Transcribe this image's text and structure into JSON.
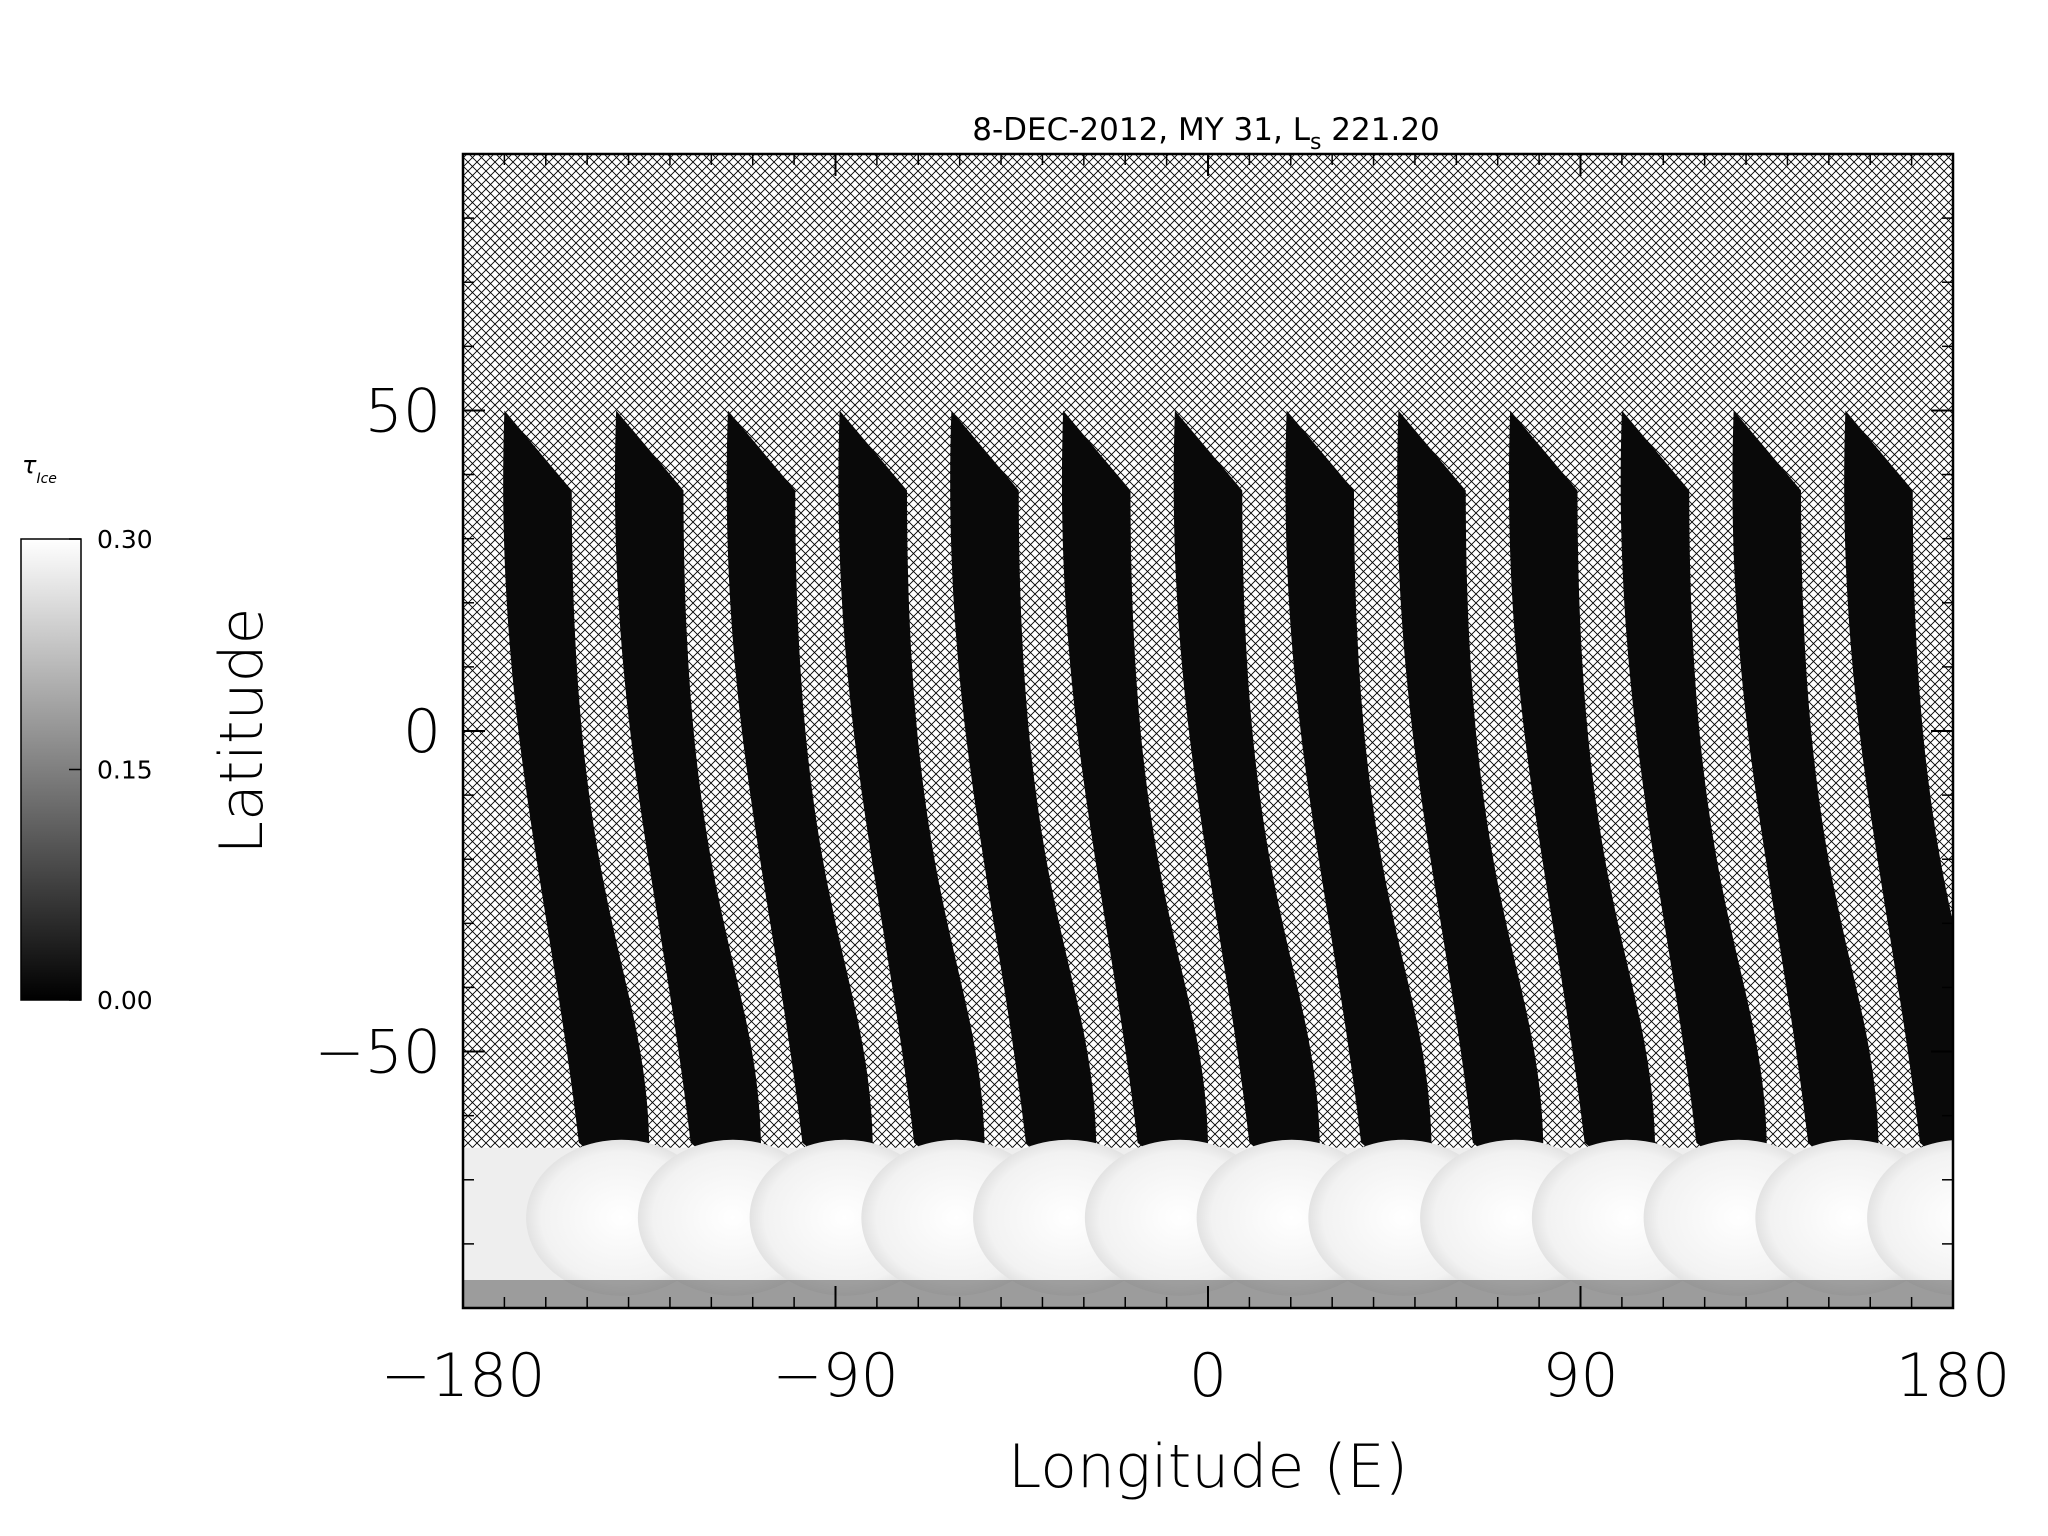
{
  "chart_data": {
    "type": "heatmap",
    "title_main": "8-DEC-2012, MY 31,  L",
    "title_sub": "s",
    "title_value": " 221.20",
    "xlabel": "Longitude (E)",
    "ylabel": "Latitude",
    "xlim": [
      -180,
      180
    ],
    "ylim": [
      -90,
      90
    ],
    "xticks": [
      -180,
      -90,
      0,
      90,
      180
    ],
    "xtick_labels": [
      "−180",
      "−90",
      "0",
      "90",
      "180"
    ],
    "yticks": [
      -50,
      0,
      50
    ],
    "ytick_labels": [
      "−50",
      "0",
      "50"
    ],
    "grid": false,
    "no_data_pattern": "crosshatch",
    "colorbar": {
      "label_main": "τ",
      "label_sub": "Ice",
      "range": [
        0.0,
        0.3
      ],
      "ticks": [
        0.0,
        0.15,
        0.3
      ],
      "tick_labels": [
        "0.00",
        "0.15",
        "0.30"
      ],
      "colormap": "grayscale",
      "position": "left"
    },
    "swaths": [
      {
        "lon_top": -170,
        "lon_bottom": -152
      },
      {
        "lon_top": -143,
        "lon_bottom": -125
      },
      {
        "lon_top": -116,
        "lon_bottom": -98
      },
      {
        "lon_top": -89,
        "lon_bottom": -71
      },
      {
        "lon_top": -62,
        "lon_bottom": -44
      },
      {
        "lon_top": -35,
        "lon_bottom": -17
      },
      {
        "lon_top": -8,
        "lon_bottom": 10
      },
      {
        "lon_top": 19,
        "lon_bottom": 37
      },
      {
        "lon_top": 46,
        "lon_bottom": 64
      },
      {
        "lon_top": 73,
        "lon_bottom": 91
      },
      {
        "lon_top": 100,
        "lon_bottom": 118
      },
      {
        "lon_top": 127,
        "lon_bottom": 145
      },
      {
        "lon_top": 154,
        "lon_bottom": 172
      }
    ],
    "swath_lat_top": 50,
    "swath_lat_bottom": -65,
    "swath_width_deg": 17,
    "swath_tau": 0.01,
    "polar_cap_lat_range": [
      -90,
      -65
    ],
    "polar_cap_tau": 0.28
  }
}
